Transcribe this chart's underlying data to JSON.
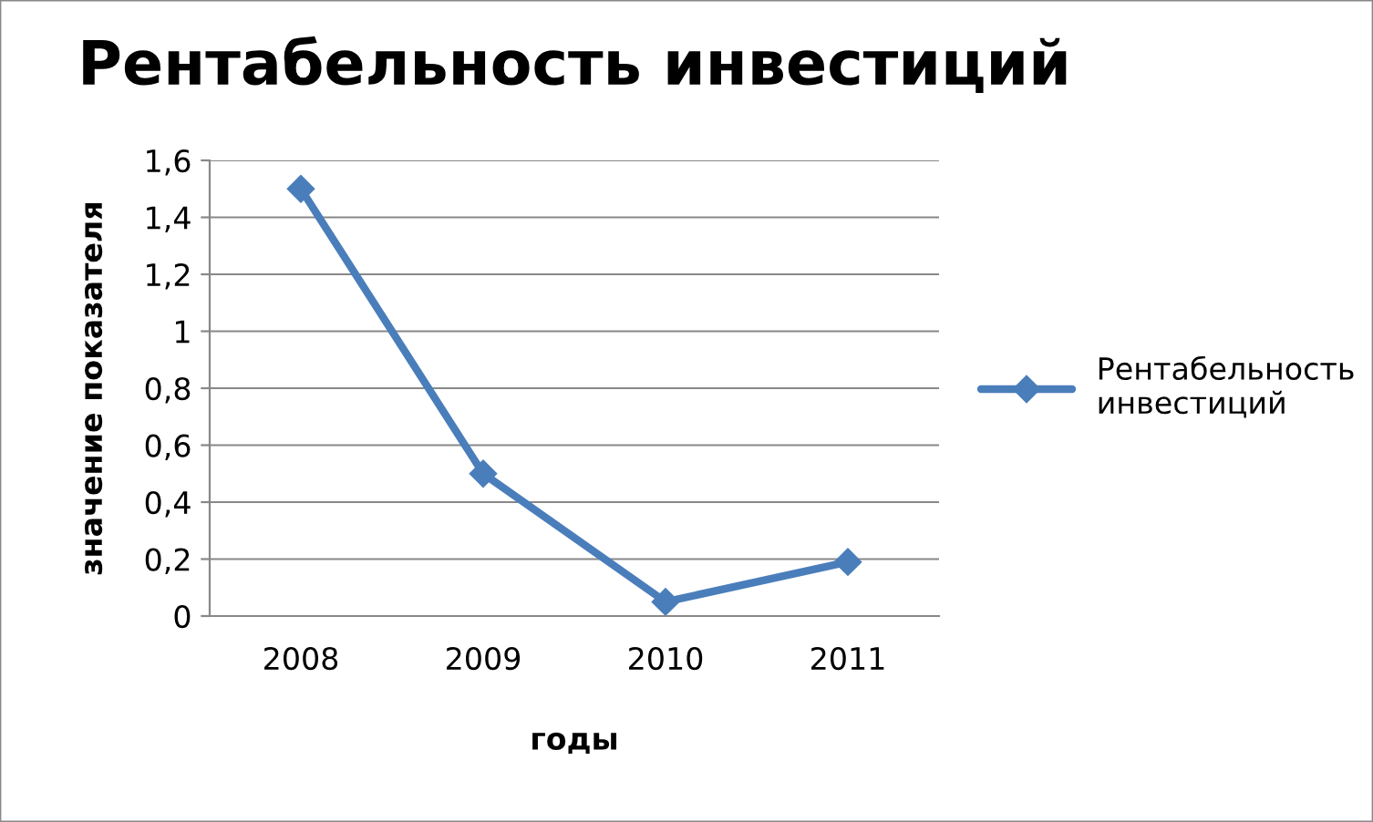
{
  "chart_data": {
    "type": "line",
    "title": "Рентабельность инвестиций",
    "xlabel": "годы",
    "ylabel": "значение показателя",
    "categories": [
      "2008",
      "2009",
      "2010",
      "2011"
    ],
    "series": [
      {
        "name": "Рентабельность инвестиций",
        "color": "#4a7ebb",
        "values": [
          1.5,
          0.5,
          0.05,
          0.19
        ]
      }
    ],
    "ylim": [
      0,
      1.6
    ],
    "yticks": [
      0,
      {
        "value": 0.2,
        "label": "0,2"
      },
      {
        "value": 0.4,
        "label": "0,4"
      },
      {
        "value": 0.6,
        "label": "0,6"
      },
      {
        "value": 0.8,
        "label": "0,8"
      },
      1,
      {
        "value": 1.2,
        "label": "1,2"
      },
      {
        "value": 1.4,
        "label": "1,4"
      },
      {
        "value": 1.6,
        "label": "1,6"
      }
    ],
    "grid": "y",
    "legend": "right",
    "marker": "diamond",
    "line_style": "solid"
  }
}
